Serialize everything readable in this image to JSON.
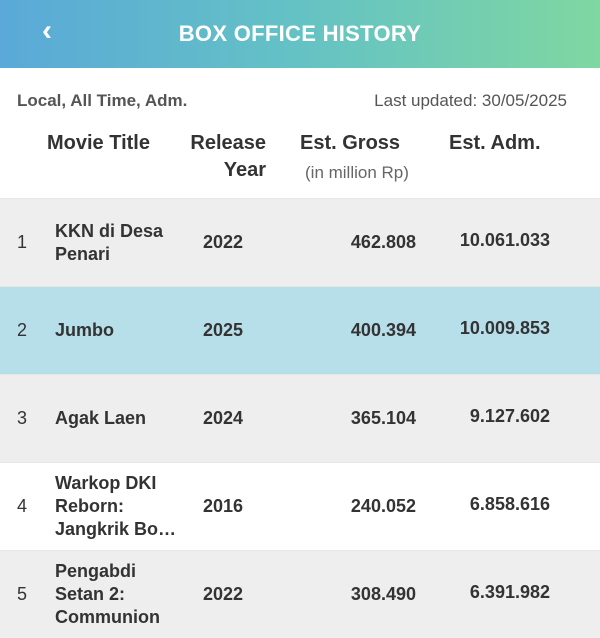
{
  "header": {
    "title": "BOX OFFICE HISTORY",
    "back_icon": "chevron-left-icon"
  },
  "meta": {
    "filters": "Local, All Time, Adm.",
    "last_updated": "Last updated: 30/05/2025"
  },
  "columns": {
    "title": "Movie Title",
    "year_line1": "Release",
    "year_line2": "Year",
    "gross": "Est. Gross",
    "gross_unit": "(in million Rp)",
    "adm": "Est. Adm."
  },
  "rows": [
    {
      "rank": "1",
      "title": "KKN di Desa Penari",
      "year": "2022",
      "gross": "462.808",
      "adm": "10.061.033"
    },
    {
      "rank": "2",
      "title": "Jumbo",
      "year": "2025",
      "gross": "400.394",
      "adm": "10.009.853"
    },
    {
      "rank": "3",
      "title": "Agak Laen",
      "year": "2024",
      "gross": "365.104",
      "adm": "9.127.602"
    },
    {
      "rank": "4",
      "title": "Warkop DKI Reborn: Jangkrik Bo…",
      "year": "2016",
      "gross": "240.052",
      "adm": "6.858.616"
    },
    {
      "rank": "5",
      "title": "Pengabdi Setan 2: Communion",
      "year": "2022",
      "gross": "308.490",
      "adm": "6.391.982"
    }
  ],
  "colors": {
    "selected_row": "#b7dfea",
    "odd_row": "#eeeeee",
    "header_start": "#5aa9d8",
    "header_end": "#7fd7a1"
  }
}
